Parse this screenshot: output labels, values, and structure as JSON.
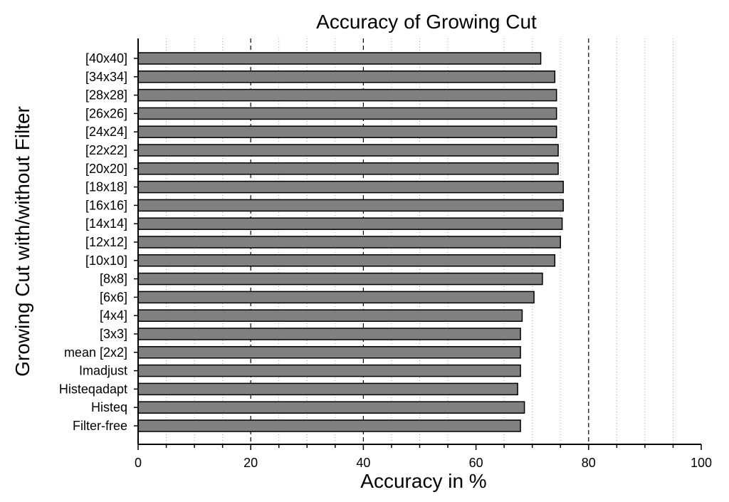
{
  "chart_data": {
    "type": "bar",
    "orientation": "horizontal",
    "title": "Accuracy of Growing Cut",
    "xlabel": "Accuracy in %",
    "ylabel": "Growing Cut with/without Filter",
    "xlim": [
      0,
      100
    ],
    "xticks": [
      0,
      20,
      40,
      60,
      80,
      100
    ],
    "dashed_gridlines": [
      20,
      40,
      80
    ],
    "dotted_gridlines": [
      5,
      10,
      15,
      25,
      30,
      35,
      45,
      50,
      55,
      65,
      70,
      75,
      85,
      90,
      95
    ],
    "bar_color": "#808080",
    "categories": [
      "[40x40]",
      "[34x34]",
      "[28x28]",
      "[26x26]",
      "[24x24]",
      "[22x22]",
      "[20x20]",
      "[18x18]",
      "[16x16]",
      "[14x14]",
      "[12x12]",
      "[10x10]",
      "[8x8]",
      "[6x6]",
      "[4x4]",
      "[3x3]",
      "mean [2x2]",
      "Imadjust",
      "Histeqadapt",
      "Histeq",
      "Filter-free"
    ],
    "values": [
      71.5,
      74,
      74.3,
      74.3,
      74.3,
      74.6,
      74.6,
      75.5,
      75.5,
      75.3,
      75,
      74,
      71.8,
      70.3,
      68.2,
      67.9,
      67.9,
      67.9,
      67.4,
      68.6,
      67.9
    ]
  }
}
